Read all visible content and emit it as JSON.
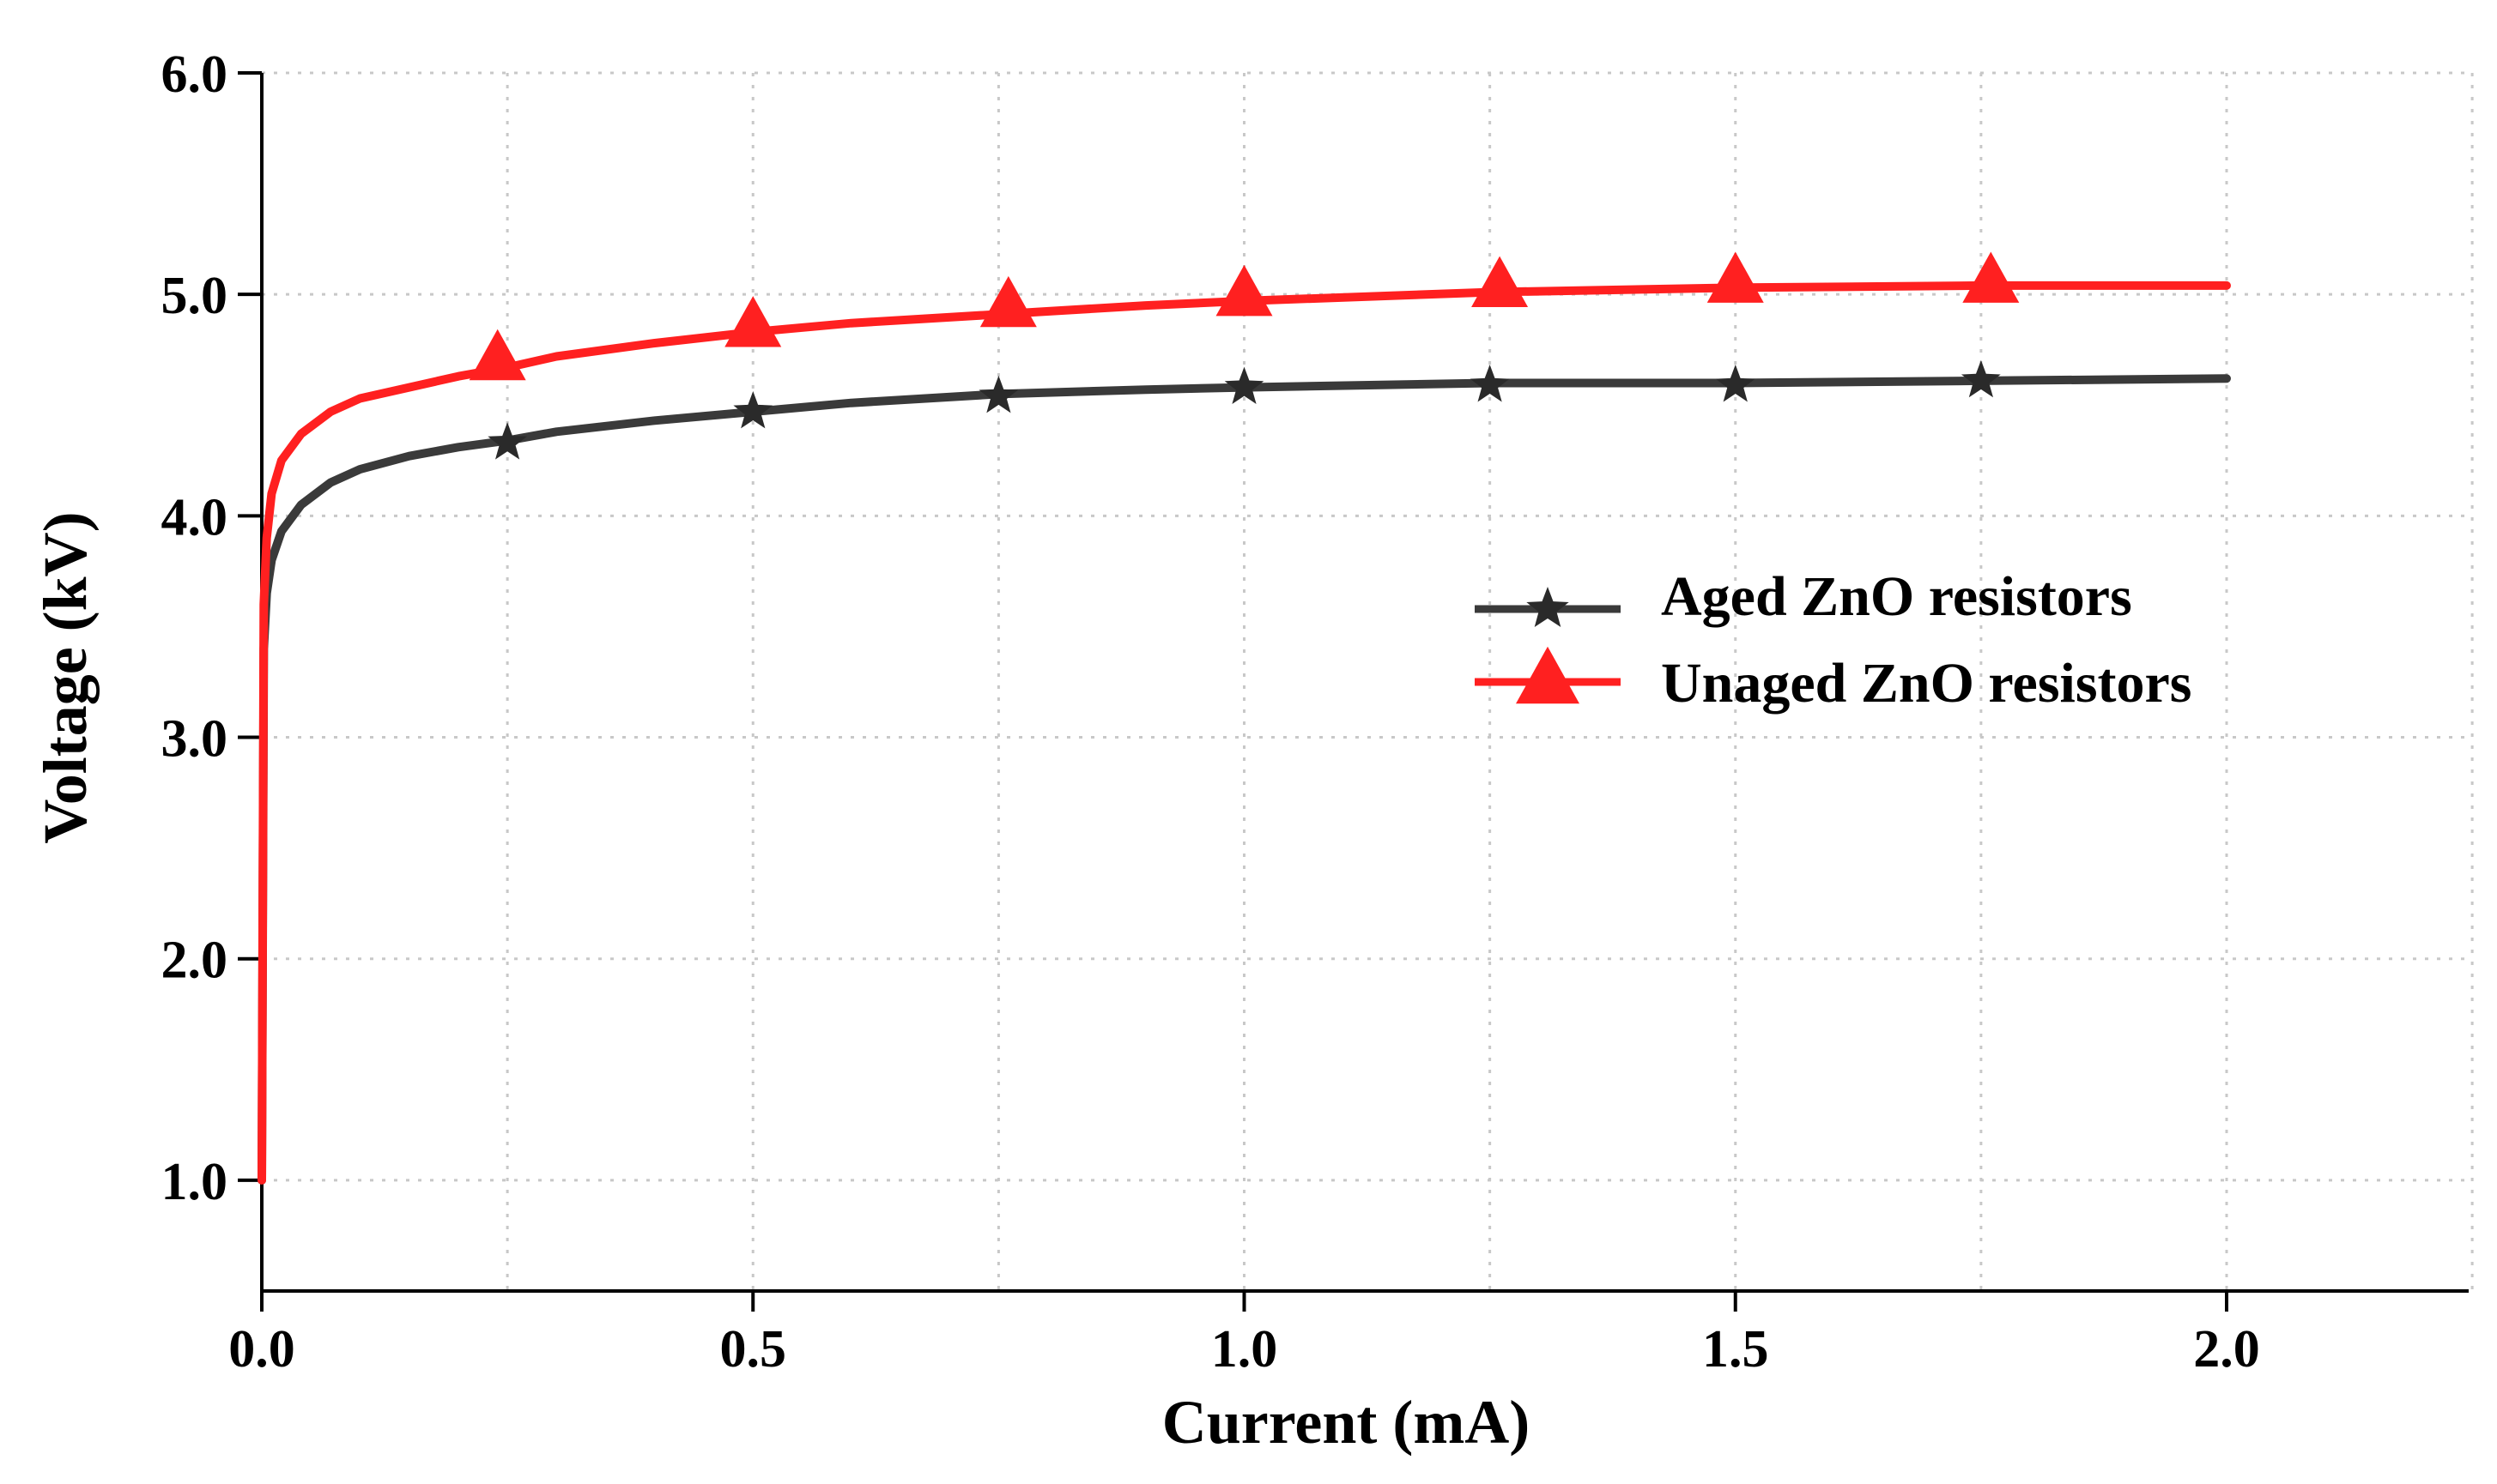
{
  "chart_data": {
    "type": "line",
    "title": "",
    "xlabel": "Current  (mA)",
    "ylabel": "Voltage  (kV)",
    "xlim": [
      0,
      2.25
    ],
    "ylim": [
      0.5,
      6.0
    ],
    "x_ticks": [
      0.0,
      0.5,
      1.0,
      1.5,
      2.0
    ],
    "x_tick_labels": [
      "0.0",
      "0.5",
      "1.0",
      "1.5",
      "2.0"
    ],
    "y_ticks": [
      1.0,
      2.0,
      3.0,
      4.0,
      5.0,
      6.0
    ],
    "y_tick_labels": [
      "1.0",
      "2.0",
      "3.0",
      "4.0",
      "5.0",
      "6.0"
    ],
    "grid": true,
    "legend_position": "right",
    "series": [
      {
        "name": "Aged ZnO resistors",
        "color": "#3a3a3a",
        "marker": "star",
        "x": [
          0.0,
          0.002,
          0.005,
          0.01,
          0.02,
          0.04,
          0.07,
          0.1,
          0.15,
          0.2,
          0.25,
          0.3,
          0.4,
          0.5,
          0.6,
          0.75,
          0.9,
          1.0,
          1.25,
          1.5,
          1.75,
          2.0
        ],
        "y": [
          1.0,
          3.4,
          3.65,
          3.8,
          3.93,
          4.05,
          4.15,
          4.21,
          4.27,
          4.31,
          4.34,
          4.38,
          4.43,
          4.47,
          4.51,
          4.55,
          4.57,
          4.58,
          4.6,
          4.6,
          4.61,
          4.62
        ],
        "marker_x": [
          0.25,
          0.5,
          0.75,
          1.0,
          1.25,
          1.5,
          1.75
        ],
        "marker_y": [
          4.33,
          4.47,
          4.54,
          4.58,
          4.59,
          4.59,
          4.61
        ]
      },
      {
        "name": "Unaged ZnO resistors",
        "color": "#ff2020",
        "marker": "triangle",
        "x": [
          0.0,
          0.002,
          0.005,
          0.01,
          0.02,
          0.04,
          0.07,
          0.1,
          0.15,
          0.2,
          0.25,
          0.3,
          0.4,
          0.5,
          0.6,
          0.75,
          0.9,
          1.0,
          1.25,
          1.5,
          1.75,
          2.0
        ],
        "y": [
          1.0,
          3.6,
          3.9,
          4.1,
          4.25,
          4.37,
          4.47,
          4.53,
          4.58,
          4.63,
          4.67,
          4.72,
          4.78,
          4.83,
          4.87,
          4.91,
          4.95,
          4.97,
          5.01,
          5.03,
          5.04,
          5.04
        ],
        "marker_x": [
          0.24,
          0.5,
          0.76,
          1.0,
          1.26,
          1.5,
          1.76
        ],
        "marker_y": [
          4.7,
          4.85,
          4.94,
          4.99,
          5.03,
          5.05,
          5.05
        ]
      }
    ]
  }
}
